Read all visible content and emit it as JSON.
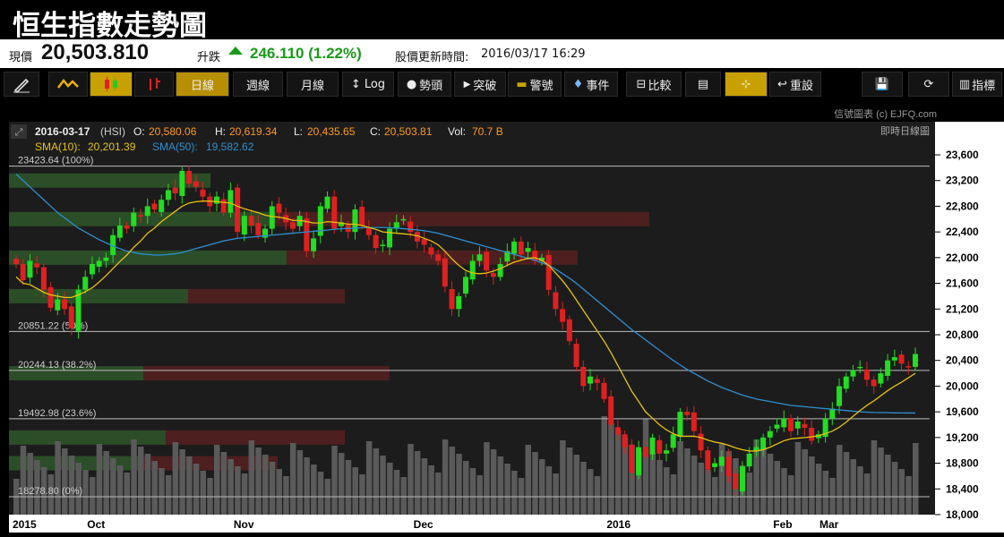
{
  "header": {
    "title": "恒生指數走勢圖"
  },
  "quote": {
    "price_label": "現價",
    "price": "20,503.810",
    "change_label": "升跌",
    "change": "246.110 (1.22%)",
    "update_label": "股價更新時間:",
    "update_time": "2016/03/17 16:29",
    "up_color": "#1a9a1a"
  },
  "toolbar": {
    "pen_icon": "pen-icon",
    "line_icon": "line-chart-icon",
    "candle_icon": "candlestick-icon",
    "ohlc_icon": "ohlc-bar-icon",
    "daily": "日線",
    "weekly": "週線",
    "monthly": "月線",
    "log": "Log",
    "trend": "勢頭",
    "breakout": "突破",
    "alert": "警號",
    "event": "事件",
    "compare": "比較",
    "reset": "重設",
    "indicators": "指標"
  },
  "chart_info": {
    "watermark": "信號圖表 (c) EJFQ.com",
    "realtime_label": "即時日線圖",
    "ohlc_line_date": "2016-03-17",
    "ohlc_line_symbol": "(HSI)",
    "o_label": "O:",
    "o_value": "20,580.06",
    "h_label": "H:",
    "h_value": "20,619.34",
    "l_label": "L:",
    "l_value": "20,435.65",
    "c_label": "C:",
    "c_value": "20,503.81",
    "vol_label": "Vol:",
    "vol_value": "70.7 B",
    "sma10_label": "SMA(10):",
    "sma10_value": "20,201.39",
    "sma50_label": "SMA(50):",
    "sma50_value": "19,582.62"
  },
  "chart_data": {
    "type": "candlestick",
    "ylim": [
      18000,
      23600
    ],
    "y_ticks": [
      "23,600",
      "23,200",
      "22,800",
      "22,400",
      "22,000",
      "21,600",
      "21,200",
      "20,800",
      "20,400",
      "20,000",
      "19,600",
      "19,200",
      "18,800",
      "18,400",
      "18,000"
    ],
    "x_labels": [
      "2015",
      "Oct",
      "Nov",
      "Dec",
      "2016",
      "Feb",
      "Mar"
    ],
    "fib_levels": [
      {
        "label": "23423.64 (100%)",
        "value": 23423.64
      },
      {
        "label": "20851.22 (50%)",
        "value": 20851.22
      },
      {
        "label": "20244.13 (38.2%)",
        "value": 20244.13
      },
      {
        "label": "19492.98 (23.6%)",
        "value": 19492.98
      },
      {
        "label": "18278.80 (0%)",
        "value": 18278.8
      }
    ],
    "colors": {
      "up": "#22dd22",
      "down": "#e02020",
      "sma10": "#e8c20a",
      "sma50": "#2f8fd0",
      "volume": "#5a5a5a",
      "fib": "#bbbbbb"
    },
    "closes": [
      21900,
      21650,
      21950,
      21850,
      21500,
      21220,
      21350,
      21200,
      20900,
      21500,
      21700,
      21900,
      21950,
      22000,
      22350,
      22500,
      22450,
      22700,
      22650,
      22800,
      22750,
      22900,
      23050,
      23000,
      23350,
      23150,
      23100,
      22950,
      22800,
      22950,
      22700,
      23050,
      22400,
      22650,
      22500,
      22350,
      22450,
      22800,
      22700,
      22550,
      22450,
      22650,
      22100,
      22300,
      22800,
      22950,
      22450,
      22550,
      22400,
      22750,
      22500,
      22350,
      22150,
      22200,
      22450,
      22550,
      22600,
      22400,
      22250,
      22200,
      22050,
      21950,
      21550,
      21200,
      21400,
      21700,
      21950,
      22050,
      21800,
      21700,
      21900,
      22100,
      22250,
      22050,
      22150,
      21950,
      22000,
      21500,
      21200,
      21000,
      20700,
      20300,
      20000,
      20150,
      20050,
      19800,
      19400,
      19250,
      19050,
      18650,
      19050,
      18900,
      19200,
      18950,
      19000,
      19250,
      19600,
      19550,
      19300,
      19000,
      18700,
      18800,
      18900,
      18600,
      18400,
      18750,
      18950,
      19050,
      19200,
      19300,
      19400,
      19500,
      19300,
      19450,
      19350,
      19150,
      19250,
      19500,
      19650,
      20000,
      20150,
      20250,
      20300,
      20100,
      20000,
      20200,
      20400,
      20450,
      20350,
      20300,
      20500
    ],
    "sma10": [
      21700,
      21600,
      21580,
      21520,
      21460,
      21420,
      21400,
      21380,
      21380,
      21420,
      21470,
      21530,
      21620,
      21720,
      21830,
      21940,
      22040,
      22160,
      22260,
      22380,
      22460,
      22560,
      22640,
      22720,
      22800,
      22850,
      22870,
      22880,
      22880,
      22870,
      22860,
      22850,
      22800,
      22760,
      22730,
      22700,
      22660,
      22640,
      22630,
      22610,
      22580,
      22580,
      22560,
      22540,
      22540,
      22560,
      22550,
      22540,
      22520,
      22520,
      22500,
      22470,
      22440,
      22400,
      22390,
      22380,
      22370,
      22360,
      22340,
      22300,
      22260,
      22200,
      22100,
      21980,
      21880,
      21800,
      21760,
      21750,
      21760,
      21790,
      21830,
      21880,
      21930,
      21960,
      21990,
      22000,
      21960,
      21880,
      21760,
      21640,
      21500,
      21340,
      21180,
      21020,
      20860,
      20700,
      20520,
      20320,
      20120,
      19920,
      19760,
      19600,
      19500,
      19400,
      19320,
      19260,
      19220,
      19220,
      19220,
      19200,
      19160,
      19130,
      19110,
      19080,
      19040,
      19010,
      18990,
      18990,
      19010,
      19050,
      19100,
      19150,
      19180,
      19190,
      19200,
      19210,
      19230,
      19260,
      19300,
      19360,
      19440,
      19530,
      19620,
      19700,
      19770,
      19850,
      19930,
      20000,
      20060,
      20130,
      20200
    ],
    "sma50": [
      23300,
      23200,
      23100,
      23000,
      22900,
      22800,
      22700,
      22620,
      22540,
      22460,
      22400,
      22340,
      22280,
      22230,
      22180,
      22140,
      22100,
      22080,
      22060,
      22050,
      22040,
      22040,
      22050,
      22060,
      22080,
      22110,
      22140,
      22170,
      22200,
      22230,
      22260,
      22280,
      22300,
      22310,
      22320,
      22330,
      22340,
      22350,
      22360,
      22370,
      22380,
      22390,
      22400,
      22410,
      22420,
      22430,
      22440,
      22450,
      22455,
      22460,
      22465,
      22470,
      22470,
      22470,
      22465,
      22460,
      22450,
      22440,
      22430,
      22420,
      22400,
      22380,
      22350,
      22320,
      22290,
      22260,
      22230,
      22200,
      22170,
      22140,
      22110,
      22080,
      22050,
      22020,
      21990,
      21960,
      21920,
      21880,
      21820,
      21750,
      21680,
      21600,
      21510,
      21420,
      21330,
      21240,
      21150,
      21060,
      20970,
      20880,
      20800,
      20720,
      20640,
      20560,
      20480,
      20400,
      20330,
      20260,
      20200,
      20140,
      20080,
      20030,
      19980,
      19940,
      19900,
      19860,
      19830,
      19800,
      19780,
      19760,
      19740,
      19720,
      19700,
      19690,
      19680,
      19670,
      19660,
      19650,
      19640,
      19630,
      19620,
      19610,
      19600,
      19595,
      19590,
      19588,
      19586,
      19584,
      19583,
      19582,
      19582
    ],
    "volume_profile": [
      {
        "price": 23200,
        "green": 0.45,
        "red": 0.0
      },
      {
        "price": 22600,
        "green": 0.58,
        "red": 0.85
      },
      {
        "price": 22000,
        "green": 0.62,
        "red": 0.65
      },
      {
        "price": 21400,
        "green": 0.4,
        "red": 0.35
      },
      {
        "price": 20200,
        "green": 0.3,
        "red": 0.55
      },
      {
        "price": 19200,
        "green": 0.35,
        "red": 0.4
      },
      {
        "price": 18800,
        "green": 0.3,
        "red": 0.3
      }
    ],
    "last_bar": {
      "date": "2016-03-17",
      "open": 20580.06,
      "high": 20619.34,
      "low": 20435.65,
      "close": 20503.81
    }
  }
}
